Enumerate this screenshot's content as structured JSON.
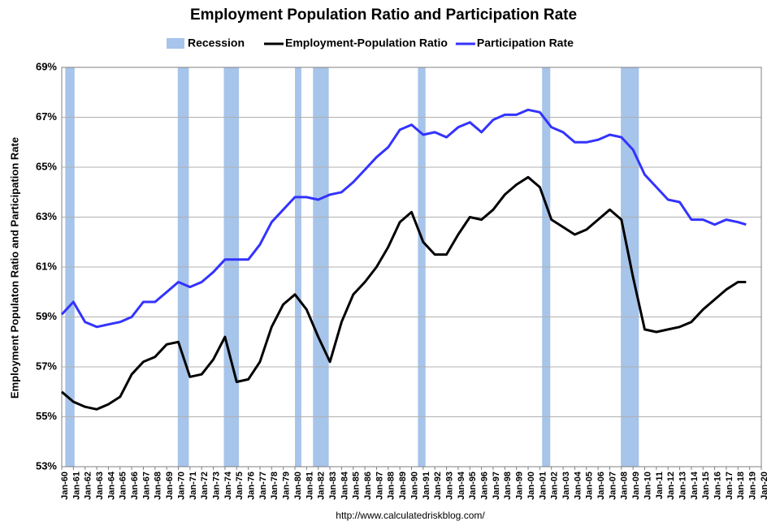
{
  "chart_data": {
    "type": "line",
    "title": "Employment Population Ratio and Participation Rate",
    "y_label": "Employment Populaton Ratio and Participation Rate",
    "source": "http://www.calculatedriskblog.com/",
    "x": [
      1960,
      1961,
      1962,
      1963,
      1964,
      1965,
      1966,
      1967,
      1968,
      1969,
      1970,
      1971,
      1972,
      1973,
      1974,
      1975,
      1976,
      1977,
      1978,
      1979,
      1980,
      1981,
      1982,
      1983,
      1984,
      1985,
      1986,
      1987,
      1988,
      1989,
      1990,
      1991,
      1992,
      1993,
      1994,
      1995,
      1996,
      1997,
      1998,
      1999,
      2000,
      2001,
      2002,
      2003,
      2004,
      2005,
      2006,
      2007,
      2008,
      2009,
      2010,
      2011,
      2012,
      2013,
      2014,
      2015,
      2016,
      2017,
      2018,
      2018.7
    ],
    "series": [
      {
        "name": "Employment-Population Ratio",
        "color": "#000000",
        "values": [
          56.0,
          55.6,
          55.4,
          55.3,
          55.5,
          55.8,
          56.7,
          57.2,
          57.4,
          57.9,
          58.0,
          56.6,
          56.7,
          57.3,
          58.2,
          56.4,
          56.5,
          57.2,
          58.6,
          59.5,
          59.9,
          59.3,
          58.2,
          57.2,
          58.8,
          59.9,
          60.4,
          61.0,
          61.8,
          62.8,
          63.2,
          62.0,
          61.5,
          61.5,
          62.3,
          63.0,
          62.9,
          63.3,
          63.9,
          64.3,
          64.6,
          64.2,
          62.9,
          62.6,
          62.3,
          62.5,
          62.9,
          63.3,
          62.9,
          60.6,
          58.5,
          58.4,
          58.5,
          58.6,
          58.8,
          59.3,
          59.7,
          60.1,
          60.4,
          60.4
        ]
      },
      {
        "name": "Participation Rate",
        "color": "#3333ff",
        "values": [
          59.1,
          59.6,
          58.8,
          58.6,
          58.7,
          58.8,
          59.0,
          59.6,
          59.6,
          60.0,
          60.4,
          60.2,
          60.4,
          60.8,
          61.3,
          61.3,
          61.3,
          61.9,
          62.8,
          63.3,
          63.8,
          63.8,
          63.7,
          63.9,
          64.0,
          64.4,
          64.9,
          65.4,
          65.8,
          66.5,
          66.7,
          66.3,
          66.4,
          66.2,
          66.6,
          66.8,
          66.4,
          66.9,
          67.1,
          67.1,
          67.3,
          67.2,
          66.6,
          66.4,
          66.0,
          66.0,
          66.1,
          66.3,
          66.2,
          65.7,
          64.7,
          64.2,
          63.7,
          63.6,
          62.9,
          62.9,
          62.7,
          62.9,
          62.8,
          62.7
        ]
      }
    ],
    "recession": {
      "name": "Recession",
      "color": "#a7c4ea",
      "periods": [
        [
          1960.3,
          1961.1
        ],
        [
          1969.95,
          1970.9
        ],
        [
          1973.9,
          1975.2
        ],
        [
          1980.0,
          1980.55
        ],
        [
          1981.55,
          1982.9
        ],
        [
          1990.55,
          1991.2
        ],
        [
          2001.2,
          2001.9
        ],
        [
          2007.95,
          2009.5
        ]
      ]
    },
    "xlim": [
      1960,
      2020
    ],
    "xticks": [
      {
        "value": 1960,
        "label": "Jan-60"
      },
      {
        "value": 1961,
        "label": "Jan-61"
      },
      {
        "value": 1962,
        "label": "Jan-62"
      },
      {
        "value": 1963,
        "label": "Jan-63"
      },
      {
        "value": 1964,
        "label": "Jan-64"
      },
      {
        "value": 1965,
        "label": "Jan-65"
      },
      {
        "value": 1966,
        "label": "Jan-66"
      },
      {
        "value": 1967,
        "label": "Jan-67"
      },
      {
        "value": 1968,
        "label": "Jan-68"
      },
      {
        "value": 1969,
        "label": "Jan-69"
      },
      {
        "value": 1970,
        "label": "Jan-70"
      },
      {
        "value": 1971,
        "label": "Jan-71"
      },
      {
        "value": 1972,
        "label": "Jan-72"
      },
      {
        "value": 1973,
        "label": "Jan-73"
      },
      {
        "value": 1974,
        "label": "Jan-74"
      },
      {
        "value": 1975,
        "label": "Jan-75"
      },
      {
        "value": 1976,
        "label": "Jan-76"
      },
      {
        "value": 1977,
        "label": "Jan-77"
      },
      {
        "value": 1978,
        "label": "Jan-78"
      },
      {
        "value": 1979,
        "label": "Jan-79"
      },
      {
        "value": 1980,
        "label": "Jan-80"
      },
      {
        "value": 1981,
        "label": "Jan-81"
      },
      {
        "value": 1982,
        "label": "Jan-82"
      },
      {
        "value": 1983,
        "label": "Jan-83"
      },
      {
        "value": 1984,
        "label": "Jan-84"
      },
      {
        "value": 1985,
        "label": "Jan-85"
      },
      {
        "value": 1986,
        "label": "Jan-86"
      },
      {
        "value": 1987,
        "label": "Jan-87"
      },
      {
        "value": 1988,
        "label": "Jan-88"
      },
      {
        "value": 1989,
        "label": "Jan-89"
      },
      {
        "value": 1990,
        "label": "Jan-90"
      },
      {
        "value": 1991,
        "label": "Jan-91"
      },
      {
        "value": 1992,
        "label": "Jan-92"
      },
      {
        "value": 1993,
        "label": "Jan-93"
      },
      {
        "value": 1994,
        "label": "Jan-94"
      },
      {
        "value": 1995,
        "label": "Jan-95"
      },
      {
        "value": 1996,
        "label": "Jan-96"
      },
      {
        "value": 1997,
        "label": "Jan-97"
      },
      {
        "value": 1998,
        "label": "Jan-98"
      },
      {
        "value": 1999,
        "label": "Jan-99"
      },
      {
        "value": 2000,
        "label": "Jan-00"
      },
      {
        "value": 2001,
        "label": "Jan-01"
      },
      {
        "value": 2002,
        "label": "Jan-02"
      },
      {
        "value": 2003,
        "label": "Jan-03"
      },
      {
        "value": 2004,
        "label": "Jan-04"
      },
      {
        "value": 2005,
        "label": "Jan-05"
      },
      {
        "value": 2006,
        "label": "Jan-06"
      },
      {
        "value": 2007,
        "label": "Jan-07"
      },
      {
        "value": 2008,
        "label": "Jan-08"
      },
      {
        "value": 2009,
        "label": "Jan-09"
      },
      {
        "value": 2010,
        "label": "Jan-10"
      },
      {
        "value": 2011,
        "label": "Jan-11"
      },
      {
        "value": 2012,
        "label": "Jan-12"
      },
      {
        "value": 2013,
        "label": "Jan-13"
      },
      {
        "value": 2014,
        "label": "Jan-14"
      },
      {
        "value": 2015,
        "label": "Jan-15"
      },
      {
        "value": 2016,
        "label": "Jan-16"
      },
      {
        "value": 2017,
        "label": "Jan-17"
      },
      {
        "value": 2018,
        "label": "Jan-18"
      },
      {
        "value": 2019,
        "label": "Jan-19"
      },
      {
        "value": 2020,
        "label": "Jan-20"
      }
    ],
    "ylim": [
      53,
      69
    ],
    "yticks": [
      {
        "value": 53,
        "label": "53%"
      },
      {
        "value": 55,
        "label": "55%"
      },
      {
        "value": 57,
        "label": "57%"
      },
      {
        "value": 59,
        "label": "59%"
      },
      {
        "value": 61,
        "label": "61%"
      },
      {
        "value": 63,
        "label": "63%"
      },
      {
        "value": 65,
        "label": "65%"
      },
      {
        "value": 67,
        "label": "67%"
      },
      {
        "value": 69,
        "label": "69%"
      }
    ],
    "grid": true
  }
}
